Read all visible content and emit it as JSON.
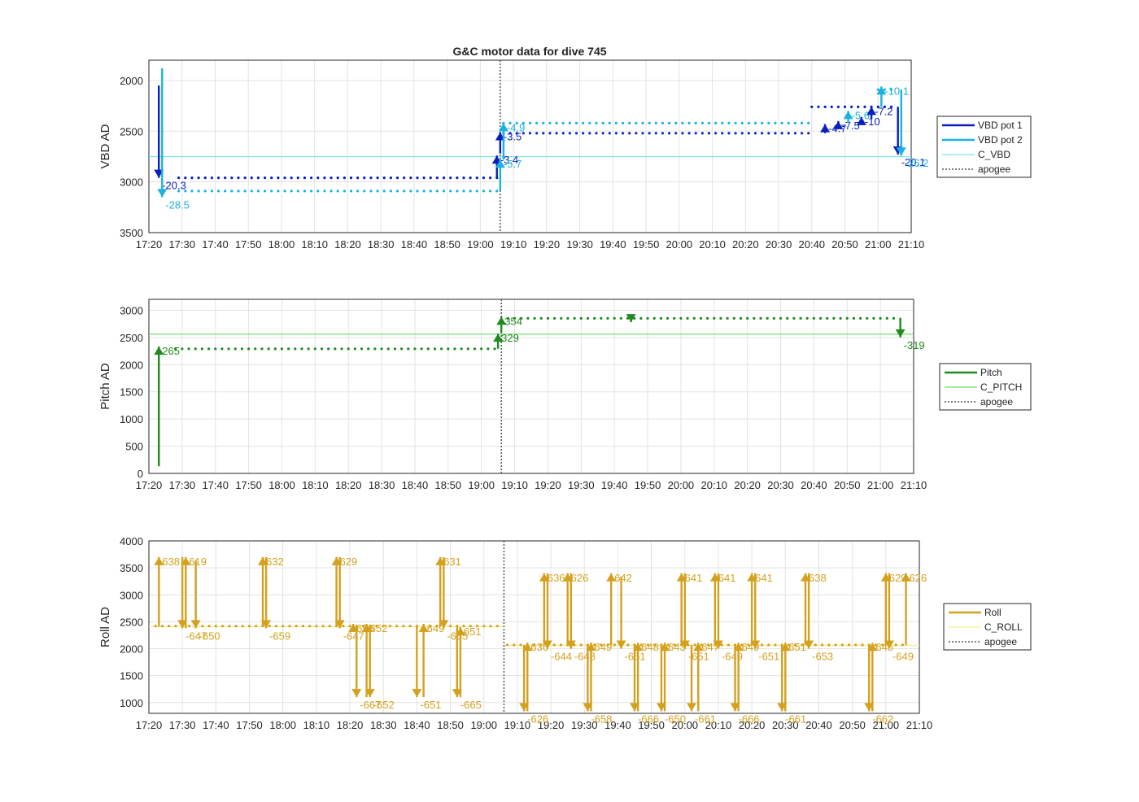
{
  "figure_title": "G&C motor data for dive 745",
  "chart_data": [
    {
      "type": "line",
      "panel": "vbd",
      "title": "G&C motor data for dive 745",
      "xlabel": "",
      "ylabel": "VBD AD",
      "x_unit": "time",
      "xlim": [
        "17:20",
        "21:10"
      ],
      "x_ticks": [
        "17:20",
        "17:30",
        "17:40",
        "17:50",
        "18:00",
        "18:10",
        "18:20",
        "18:30",
        "18:40",
        "18:50",
        "19:00",
        "19:10",
        "19:20",
        "19:30",
        "19:40",
        "19:50",
        "20:00",
        "20:10",
        "20:20",
        "20:30",
        "20:40",
        "20:50",
        "21:00",
        "21:10"
      ],
      "ylim": [
        3500,
        1800
      ],
      "y_reversed": true,
      "y_ticks": [
        2000,
        2500,
        3000,
        3500
      ],
      "grid": true,
      "legend_position": "outside-right",
      "apogee": "19:06",
      "series": [
        {
          "name": "VBD pot 1",
          "color": "#0a1fbf",
          "style": "dots",
          "segments": [
            {
              "from": "17:29",
              "to": "19:05",
              "value": 2960
            },
            {
              "from": "19:07",
              "to": "20:40",
              "value": 2520
            },
            {
              "from": "20:40",
              "to": "21:05",
              "value": 2260
            }
          ]
        },
        {
          "name": "VBD pot 2",
          "color": "#1ab2e0",
          "style": "dots",
          "segments": [
            {
              "from": "17:29",
              "to": "19:05",
              "value": 3090
            },
            {
              "from": "19:07",
              "to": "20:40",
              "value": 2420
            },
            {
              "from": "21:00",
              "to": "21:05",
              "value": 2090
            }
          ]
        },
        {
          "name": "C_VBD",
          "color": "#7fe0ef",
          "style": "line",
          "value": 2750
        },
        {
          "name": "apogee",
          "color": "#555555",
          "style": "dotted-vertical"
        }
      ],
      "annotations": [
        {
          "label": "-20.3",
          "t": "17:23",
          "from": 2050,
          "to": 2960,
          "series": 0
        },
        {
          "label": "-28.5",
          "t": "17:24",
          "from": 1880,
          "to": 3150,
          "series": 1
        },
        {
          "label": "-3.4",
          "t": "19:05",
          "from": 2960,
          "to": 2740,
          "series": 0
        },
        {
          "label": "-3.5",
          "t": "19:06",
          "from": 2720,
          "to": 2510,
          "series": 0
        },
        {
          "label": "-5.7",
          "t": "19:06",
          "from": 3090,
          "to": 2780,
          "series": 1
        },
        {
          "label": "-4.9",
          "t": "19:07",
          "from": 2780,
          "to": 2420,
          "series": 1
        },
        {
          "label": "-4.7",
          "t": "20:44",
          "from": 2520,
          "to": 2430,
          "series": 0
        },
        {
          "label": "-7.5",
          "t": "20:48",
          "from": 2470,
          "to": 2400,
          "series": 0
        },
        {
          "label": "-10",
          "t": "20:55",
          "from": 2400,
          "to": 2360,
          "series": 0
        },
        {
          "label": "-5.6",
          "t": "20:51",
          "from": 2420,
          "to": 2300,
          "series": 1
        },
        {
          "label": "-7.2",
          "t": "20:58",
          "from": 2380,
          "to": 2260,
          "series": 0
        },
        {
          "label": "-10.1",
          "t": "21:01",
          "from": 2260,
          "to": 2060,
          "series": 1
        },
        {
          "label": "-20.1",
          "t": "21:06",
          "from": 2260,
          "to": 2730,
          "series": 0
        },
        {
          "label": "-26.2",
          "t": "21:07",
          "from": 2090,
          "to": 2740,
          "series": 1
        }
      ]
    },
    {
      "type": "line",
      "panel": "pitch",
      "xlabel": "",
      "ylabel": "Pitch AD",
      "xlim": [
        "17:20",
        "21:10"
      ],
      "x_ticks": [
        "17:20",
        "17:30",
        "17:40",
        "17:50",
        "18:00",
        "18:10",
        "18:20",
        "18:30",
        "18:40",
        "18:50",
        "19:00",
        "19:10",
        "19:20",
        "19:30",
        "19:40",
        "19:50",
        "20:00",
        "20:10",
        "20:20",
        "20:30",
        "20:40",
        "20:50",
        "21:00",
        "21:10"
      ],
      "ylim": [
        0,
        3200
      ],
      "y_ticks": [
        0,
        500,
        1000,
        1500,
        2000,
        2500,
        3000
      ],
      "grid": true,
      "legend_position": "outside-right",
      "apogee": "19:06",
      "series": [
        {
          "name": "Pitch",
          "color": "#1f8a1f",
          "style": "dots",
          "segments": [
            {
              "from": "17:28",
              "to": "19:05",
              "value": 2290
            },
            {
              "from": "19:08",
              "to": "21:05",
              "value": 2850
            }
          ]
        },
        {
          "name": "C_PITCH",
          "color": "#66dd66",
          "style": "line",
          "value": 2560
        },
        {
          "name": "apogee",
          "color": "#555555",
          "style": "dotted-vertical"
        }
      ],
      "annotations": [
        {
          "label": "265",
          "t": "17:23",
          "from": 130,
          "to": 2330
        },
        {
          "label": "329",
          "t": "19:05",
          "from": 2290,
          "to": 2570
        },
        {
          "label": "354",
          "t": "19:06",
          "from": 2590,
          "to": 2880
        },
        {
          "label": "",
          "t": "19:45",
          "from": 2850,
          "to": 2780
        },
        {
          "label": "-319",
          "t": "21:06",
          "from": 2860,
          "to": 2500
        }
      ]
    },
    {
      "type": "line",
      "panel": "roll",
      "xlabel": "",
      "ylabel": "Roll AD",
      "xlim": [
        "17:20",
        "21:10"
      ],
      "x_ticks": [
        "17:20",
        "17:30",
        "17:40",
        "17:50",
        "18:00",
        "18:10",
        "18:20",
        "18:30",
        "18:40",
        "18:50",
        "19:00",
        "19:10",
        "19:20",
        "19:30",
        "19:40",
        "19:50",
        "20:00",
        "20:10",
        "20:20",
        "20:30",
        "20:40",
        "20:50",
        "21:00",
        "21:10"
      ],
      "ylim": [
        800,
        4000
      ],
      "y_ticks": [
        1000,
        1500,
        2000,
        2500,
        3000,
        3500,
        4000
      ],
      "grid": true,
      "legend_position": "outside-right",
      "apogee": "19:06",
      "series": [
        {
          "name": "Roll",
          "color": "#d4a11e",
          "style": "dots",
          "segments": [
            {
              "from": "17:22",
              "to": "19:05",
              "value": 2420
            },
            {
              "from": "19:07",
              "to": "21:05",
              "value": 2070
            }
          ]
        },
        {
          "name": "C_ROLL",
          "color": "#f6e98a",
          "style": "line",
          "segments": [
            {
              "from": "17:20",
              "to": "19:06",
              "value": 2410
            },
            {
              "from": "19:06",
              "to": "21:10",
              "value": 2060
            }
          ]
        },
        {
          "name": "apogee",
          "color": "#555555",
          "style": "dotted-vertical"
        }
      ],
      "annotations": [
        {
          "label": "638",
          "t": "17:23",
          "from": 2410,
          "to": 3700,
          "side": "up"
        },
        {
          "label": "-647",
          "t": "17:30",
          "from": 3700,
          "to": 2380,
          "side": "down"
        },
        {
          "label": "619",
          "t": "17:31",
          "from": 2380,
          "to": 3700,
          "side": "up"
        },
        {
          "label": "-650",
          "t": "17:34",
          "from": 3640,
          "to": 2380,
          "side": "down"
        },
        {
          "label": "632",
          "t": "17:54",
          "from": 2410,
          "to": 3700,
          "side": "up"
        },
        {
          "label": "-659",
          "t": "17:55",
          "from": 3700,
          "to": 2380,
          "side": "down"
        },
        {
          "label": "629",
          "t": "18:16",
          "from": 2410,
          "to": 3700,
          "side": "up"
        },
        {
          "label": "-647",
          "t": "18:17",
          "from": 3700,
          "to": 2380,
          "side": "down"
        },
        {
          "label": "656",
          "t": "18:21",
          "from": 2380,
          "to": 2460,
          "side": "up"
        },
        {
          "label": "-667",
          "t": "18:22",
          "from": 2420,
          "to": 1100,
          "side": "down"
        },
        {
          "label": "652",
          "t": "18:25",
          "from": 1100,
          "to": 2460,
          "side": "up"
        },
        {
          "label": "-652",
          "t": "18:26",
          "from": 2420,
          "to": 1100,
          "side": "down"
        },
        {
          "label": "649",
          "t": "18:42",
          "from": 1100,
          "to": 2460,
          "side": "up"
        },
        {
          "label": "-651",
          "t": "18:40",
          "from": 2420,
          "to": 1100,
          "side": "down"
        },
        {
          "label": "631",
          "t": "18:47",
          "from": 2410,
          "to": 3700,
          "side": "up"
        },
        {
          "label": "-655",
          "t": "18:48",
          "from": 3700,
          "to": 2380,
          "side": "down"
        },
        {
          "label": "651",
          "t": "18:53",
          "from": 1100,
          "to": 2400,
          "side": "up"
        },
        {
          "label": "-665",
          "t": "18:52",
          "from": 2420,
          "to": 1100,
          "side": "down"
        },
        {
          "label": "-626",
          "t": "19:12",
          "from": 2070,
          "to": 840,
          "side": "down"
        },
        {
          "label": "636",
          "t": "19:13",
          "from": 840,
          "to": 2110,
          "side": "up"
        },
        {
          "label": "636",
          "t": "19:18",
          "from": 2070,
          "to": 3400,
          "side": "up"
        },
        {
          "label": "-644",
          "t": "19:19",
          "from": 3400,
          "to": 2000,
          "side": "down"
        },
        {
          "label": "626",
          "t": "19:25",
          "from": 2070,
          "to": 3400,
          "side": "up"
        },
        {
          "label": "-648",
          "t": "19:26",
          "from": 3400,
          "to": 2000,
          "side": "down"
        },
        {
          "label": "-658",
          "t": "19:31",
          "from": 2070,
          "to": 840,
          "side": "down"
        },
        {
          "label": "649",
          "t": "19:32",
          "from": 840,
          "to": 2110,
          "side": "up"
        },
        {
          "label": "642",
          "t": "19:38",
          "from": 2070,
          "to": 3400,
          "side": "up"
        },
        {
          "label": "-651",
          "t": "19:41",
          "from": 3340,
          "to": 2000,
          "side": "down"
        },
        {
          "label": "-666",
          "t": "19:45",
          "from": 2070,
          "to": 840,
          "side": "down"
        },
        {
          "label": "648",
          "t": "19:46",
          "from": 840,
          "to": 2110,
          "side": "up"
        },
        {
          "label": "-650",
          "t": "19:53",
          "from": 2070,
          "to": 840,
          "side": "down"
        },
        {
          "label": "643",
          "t": "19:54",
          "from": 840,
          "to": 2110,
          "side": "up"
        },
        {
          "label": "641",
          "t": "19:59",
          "from": 2070,
          "to": 3400,
          "side": "up"
        },
        {
          "label": "-651",
          "t": "20:00",
          "from": 3400,
          "to": 2000,
          "side": "down"
        },
        {
          "label": "-661",
          "t": "20:02",
          "from": 2070,
          "to": 840,
          "side": "down"
        },
        {
          "label": "647",
          "t": "20:04",
          "from": 840,
          "to": 2110,
          "side": "up"
        },
        {
          "label": "641",
          "t": "20:09",
          "from": 2070,
          "to": 3400,
          "side": "up"
        },
        {
          "label": "-649",
          "t": "20:10",
          "from": 3400,
          "to": 2000,
          "side": "down"
        },
        {
          "label": "-666",
          "t": "20:15",
          "from": 2070,
          "to": 840,
          "side": "down"
        },
        {
          "label": "649",
          "t": "20:16",
          "from": 840,
          "to": 2110,
          "side": "up"
        },
        {
          "label": "641",
          "t": "20:20",
          "from": 2070,
          "to": 3400,
          "side": "up"
        },
        {
          "label": "-651",
          "t": "20:21",
          "from": 3400,
          "to": 2000,
          "side": "down"
        },
        {
          "label": "-661",
          "t": "20:29",
          "from": 2070,
          "to": 840,
          "side": "down"
        },
        {
          "label": "651",
          "t": "20:30",
          "from": 840,
          "to": 2110,
          "side": "up"
        },
        {
          "label": "638",
          "t": "20:36",
          "from": 2070,
          "to": 3400,
          "side": "up"
        },
        {
          "label": "-653",
          "t": "20:37",
          "from": 3400,
          "to": 2000,
          "side": "down"
        },
        {
          "label": "-662",
          "t": "20:55",
          "from": 2070,
          "to": 840,
          "side": "down"
        },
        {
          "label": "645",
          "t": "20:56",
          "from": 840,
          "to": 2110,
          "side": "up"
        },
        {
          "label": "629",
          "t": "21:00",
          "from": 2070,
          "to": 3400,
          "side": "up"
        },
        {
          "label": "-649",
          "t": "21:01",
          "from": 3400,
          "to": 2000,
          "side": "down"
        },
        {
          "label": "626",
          "t": "21:06",
          "from": 2070,
          "to": 3400,
          "side": "up"
        }
      ]
    }
  ]
}
